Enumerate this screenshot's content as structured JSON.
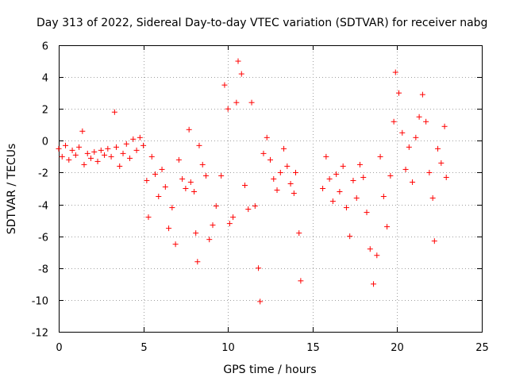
{
  "chart_data": {
    "type": "scatter",
    "title": "Day 313 of 2022, Sidereal Day-to-day VTEC variation (SDTVAR) for receiver nabg",
    "xlabel": "GPS time / hours",
    "ylabel": "SDTVAR / TECUs",
    "xlim": [
      0,
      25
    ],
    "ylim": [
      -12,
      6
    ],
    "xticks": [
      "0",
      "5",
      "10",
      "15",
      "20",
      "25"
    ],
    "yticks": [
      "6",
      "4",
      "2",
      "0",
      "-2",
      "-4",
      "-6",
      "-8",
      "-10",
      "-12"
    ],
    "grid": true,
    "marker": "+",
    "color": "#ff0000",
    "series": [
      {
        "name": "SDTVAR",
        "points": [
          [
            0.0,
            -0.5
          ],
          [
            0.2,
            -1.0
          ],
          [
            0.4,
            -0.3
          ],
          [
            0.6,
            -1.2
          ],
          [
            0.8,
            -0.6
          ],
          [
            1.0,
            -0.9
          ],
          [
            1.2,
            -0.4
          ],
          [
            1.4,
            0.6
          ],
          [
            1.5,
            -1.5
          ],
          [
            1.7,
            -0.8
          ],
          [
            1.9,
            -1.1
          ],
          [
            2.1,
            -0.7
          ],
          [
            2.3,
            -1.3
          ],
          [
            2.5,
            -0.6
          ],
          [
            2.7,
            -0.9
          ],
          [
            2.9,
            -0.5
          ],
          [
            3.1,
            -1.0
          ],
          [
            3.3,
            1.8
          ],
          [
            3.4,
            -0.4
          ],
          [
            3.6,
            -1.6
          ],
          [
            3.8,
            -0.8
          ],
          [
            4.0,
            -0.2
          ],
          [
            4.2,
            -1.1
          ],
          [
            4.4,
            0.1
          ],
          [
            4.6,
            -0.6
          ],
          [
            4.8,
            0.2
          ],
          [
            5.0,
            -0.3
          ],
          [
            5.2,
            -2.5
          ],
          [
            5.3,
            -4.8
          ],
          [
            5.5,
            -1.0
          ],
          [
            5.7,
            -2.1
          ],
          [
            5.9,
            -3.5
          ],
          [
            6.1,
            -1.8
          ],
          [
            6.3,
            -2.9
          ],
          [
            6.5,
            -5.5
          ],
          [
            6.7,
            -4.2
          ],
          [
            6.9,
            -6.5
          ],
          [
            7.1,
            -1.2
          ],
          [
            7.3,
            -2.4
          ],
          [
            7.5,
            -3.0
          ],
          [
            7.7,
            0.7
          ],
          [
            7.8,
            -2.6
          ],
          [
            8.0,
            -3.2
          ],
          [
            8.1,
            -5.8
          ],
          [
            8.2,
            -7.6
          ],
          [
            8.3,
            -0.3
          ],
          [
            8.5,
            -1.5
          ],
          [
            8.7,
            -2.2
          ],
          [
            8.9,
            -6.2
          ],
          [
            9.1,
            -5.3
          ],
          [
            9.3,
            -4.1
          ],
          [
            9.6,
            -2.2
          ],
          [
            9.8,
            3.5
          ],
          [
            10.0,
            2.0
          ],
          [
            10.1,
            -5.2
          ],
          [
            10.3,
            -4.8
          ],
          [
            10.5,
            2.4
          ],
          [
            10.6,
            5.0
          ],
          [
            10.8,
            4.2
          ],
          [
            11.0,
            -2.8
          ],
          [
            11.2,
            -4.3
          ],
          [
            11.4,
            2.4
          ],
          [
            11.6,
            -4.1
          ],
          [
            11.8,
            -8.0
          ],
          [
            11.9,
            -10.1
          ],
          [
            12.1,
            -0.8
          ],
          [
            12.3,
            0.2
          ],
          [
            12.5,
            -1.2
          ],
          [
            12.7,
            -2.4
          ],
          [
            12.9,
            -3.1
          ],
          [
            13.1,
            -2.0
          ],
          [
            13.3,
            -0.5
          ],
          [
            13.5,
            -1.6
          ],
          [
            13.7,
            -2.7
          ],
          [
            13.9,
            -3.3
          ],
          [
            14.0,
            -2.0
          ],
          [
            14.2,
            -5.8
          ],
          [
            14.3,
            -8.8
          ],
          [
            15.6,
            -3.0
          ],
          [
            15.8,
            -1.0
          ],
          [
            16.0,
            -2.4
          ],
          [
            16.2,
            -3.8
          ],
          [
            16.4,
            -2.1
          ],
          [
            16.6,
            -3.2
          ],
          [
            16.8,
            -1.6
          ],
          [
            17.0,
            -4.2
          ],
          [
            17.2,
            -6.0
          ],
          [
            17.4,
            -2.5
          ],
          [
            17.6,
            -3.6
          ],
          [
            17.8,
            -1.5
          ],
          [
            18.0,
            -2.3
          ],
          [
            18.2,
            -4.5
          ],
          [
            18.4,
            -6.8
          ],
          [
            18.6,
            -9.0
          ],
          [
            18.8,
            -7.2
          ],
          [
            19.0,
            -1.0
          ],
          [
            19.2,
            -3.5
          ],
          [
            19.4,
            -5.4
          ],
          [
            19.6,
            -2.2
          ],
          [
            19.8,
            1.2
          ],
          [
            19.9,
            4.3
          ],
          [
            20.1,
            3.0
          ],
          [
            20.3,
            0.5
          ],
          [
            20.5,
            -1.8
          ],
          [
            20.7,
            -0.4
          ],
          [
            20.9,
            -2.6
          ],
          [
            21.1,
            0.2
          ],
          [
            21.3,
            1.5
          ],
          [
            21.5,
            2.9
          ],
          [
            21.7,
            1.2
          ],
          [
            21.9,
            -2.0
          ],
          [
            22.1,
            -3.6
          ],
          [
            22.2,
            -6.3
          ],
          [
            22.4,
            -0.5
          ],
          [
            22.6,
            -1.4
          ],
          [
            22.8,
            0.9
          ],
          [
            22.9,
            -2.3
          ]
        ]
      }
    ]
  }
}
